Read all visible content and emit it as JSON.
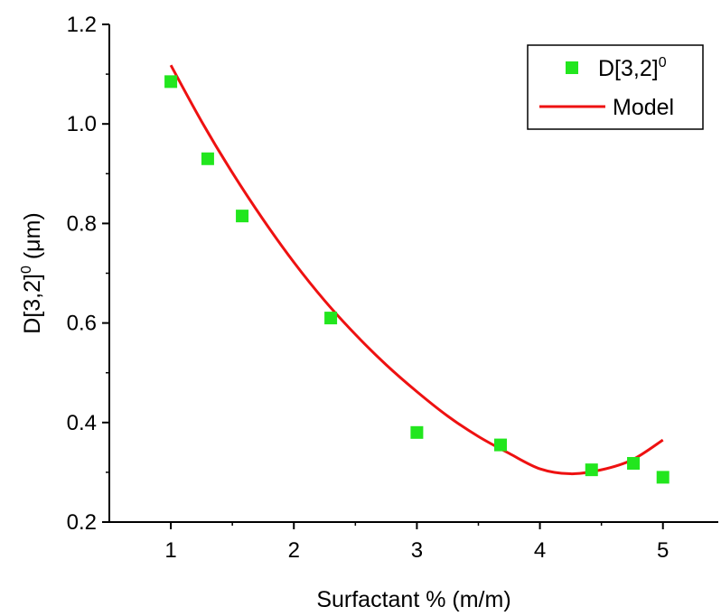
{
  "chart_data": {
    "type": "scatter",
    "xlabel": "Surfactant % (m/m)",
    "ylabel": {
      "main": "D[3,2]",
      "sup": "0",
      "unit": " (μm)"
    },
    "xlim": [
      0.5,
      5.45
    ],
    "ylim": [
      0.2,
      1.2
    ],
    "xticks": [
      1,
      2,
      3,
      4,
      5
    ],
    "yticks": [
      0.2,
      0.4,
      0.6,
      0.8,
      1.0,
      1.2
    ],
    "xtick_labels": [
      "1",
      "2",
      "3",
      "4",
      "5"
    ],
    "ytick_labels": [
      "0.2",
      "0.4",
      "0.6",
      "0.8",
      "1.0",
      "1.2"
    ],
    "grid": false,
    "legend_position": "top-right",
    "series": [
      {
        "name": {
          "main": "D[3,2]",
          "sup": "0"
        },
        "kind": "markers",
        "marker": "square",
        "color": "#22e61e",
        "x": [
          1.0,
          1.3,
          1.58,
          2.3,
          3.0,
          3.68,
          4.42,
          4.76,
          5.0
        ],
        "y": [
          1.085,
          0.93,
          0.815,
          0.61,
          0.38,
          0.355,
          0.305,
          0.318,
          0.29
        ]
      },
      {
        "name": "Model",
        "kind": "line",
        "color": "#ee1111",
        "x": [
          1.0,
          1.25,
          1.5,
          1.75,
          2.0,
          2.25,
          2.5,
          2.75,
          3.0,
          3.25,
          3.5,
          3.75,
          4.0,
          4.25,
          4.5,
          4.75,
          5.0
        ],
        "y": [
          1.118,
          1.005,
          0.902,
          0.808,
          0.722,
          0.645,
          0.577,
          0.516,
          0.462,
          0.413,
          0.372,
          0.338,
          0.307,
          0.297,
          0.305,
          0.325,
          0.365
        ]
      }
    ]
  }
}
